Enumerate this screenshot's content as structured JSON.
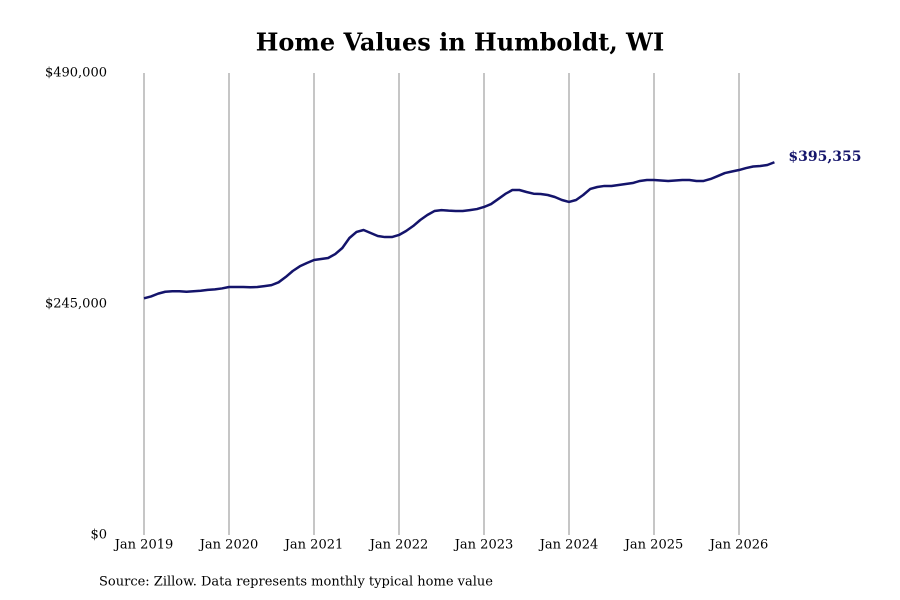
{
  "chart_data": {
    "type": "line",
    "title": "Home Values in Humboldt, WI",
    "source": "Source: Zillow. Data represents monthly typical home value",
    "categories": [
      "Jan 2019",
      null,
      null,
      null,
      null,
      null,
      null,
      null,
      null,
      null,
      null,
      null,
      "Jan 2020",
      null,
      null,
      null,
      null,
      null,
      null,
      null,
      null,
      null,
      null,
      null,
      "Jan 2021",
      null,
      null,
      null,
      null,
      null,
      null,
      null,
      null,
      null,
      null,
      null,
      "Jan 2022",
      null,
      null,
      null,
      null,
      null,
      null,
      null,
      null,
      null,
      null,
      null,
      "Jan 2023",
      null,
      null,
      null,
      null,
      null,
      null,
      null,
      null,
      null,
      null,
      null,
      "Jan 2024",
      null,
      null,
      null,
      null,
      null,
      null,
      null,
      null,
      null,
      null,
      null,
      "Jan 2025",
      null,
      null,
      null,
      null,
      null,
      null,
      null,
      null,
      null,
      null,
      null,
      "Jan 2026",
      null,
      null,
      null,
      null,
      null
    ],
    "series": [
      {
        "name": "Home value",
        "color": "#14146b",
        "values": [
          251000,
          253000,
          256000,
          258000,
          258500,
          258500,
          258000,
          258500,
          259000,
          260000,
          260500,
          261500,
          263000,
          263000,
          263000,
          262800,
          263000,
          264000,
          265000,
          268000,
          273600,
          280000,
          285000,
          288500,
          291700,
          292700,
          293800,
          298000,
          304400,
          315000,
          321400,
          323500,
          320300,
          317100,
          316000,
          316000,
          318200,
          322400,
          327700,
          334100,
          339400,
          343600,
          344600,
          344000,
          343600,
          343600,
          344600,
          345700,
          347900,
          351000,
          356300,
          361700,
          365900,
          365900,
          363800,
          362000,
          361700,
          360600,
          358500,
          355300,
          353200,
          355300,
          360600,
          367000,
          369100,
          370200,
          370200,
          371200,
          372300,
          373300,
          375500,
          376500,
          376500,
          376000,
          375500,
          376000,
          376500,
          376500,
          375500,
          375500,
          377600,
          380700,
          383900,
          385500,
          387100,
          389200,
          390800,
          391400,
          392400,
          395355
        ],
        "value_labels": [
          null,
          null,
          null,
          null,
          null,
          null,
          null,
          null,
          null,
          null,
          null,
          null,
          null,
          null,
          null,
          null,
          null,
          null,
          null,
          null,
          null,
          null,
          null,
          null,
          null,
          null,
          null,
          null,
          null,
          null,
          null,
          null,
          null,
          null,
          null,
          null,
          null,
          null,
          null,
          null,
          null,
          null,
          null,
          null,
          null,
          null,
          null,
          null,
          null,
          null,
          null,
          null,
          null,
          null,
          null,
          null,
          null,
          null,
          null,
          null,
          null,
          null,
          null,
          null,
          null,
          null,
          null,
          null,
          null,
          null,
          null,
          null,
          null,
          null,
          null,
          null,
          null,
          null,
          null,
          null,
          null,
          null,
          null,
          null,
          null,
          null,
          null,
          null,
          null,
          "$395,355"
        ]
      }
    ],
    "ylim": [
      0,
      490000
    ],
    "yticks": [
      {
        "value": 0,
        "label": "$0"
      },
      {
        "value": 245000,
        "label": "$245,000"
      },
      {
        "value": 490000,
        "label": "$490,000"
      }
    ],
    "grid": true
  }
}
